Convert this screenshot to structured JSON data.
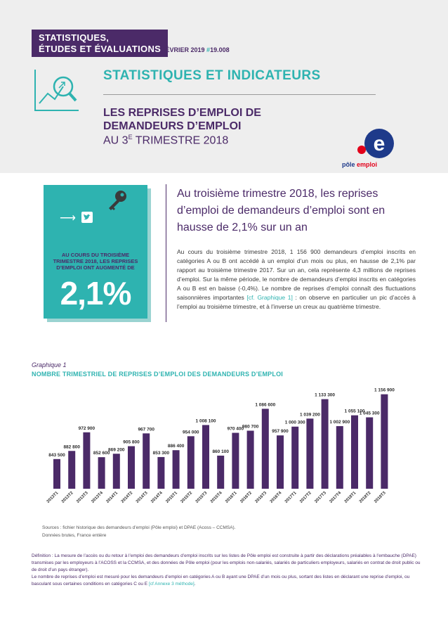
{
  "header": {
    "brand_line1": "STATISTIQUES,",
    "brand_line2": "ÉTUDES ET ÉVALUATIONS",
    "issue_date": "FÉVRIER 2019",
    "issue_hash": "#",
    "issue_number": "19.008",
    "main_title": "STATISTIQUES ET INDICATEURS",
    "sub_title_line1": "LES REPRISES D’EMPLOI DE",
    "sub_title_line2": "DEMANDEURS D’EMPLOI",
    "sub_title_line3_a": "AU 3",
    "sub_title_line3_sup": "E",
    "sub_title_line3_b": " TRIMESTRE 2018",
    "logo_text_a": "pôle ",
    "logo_text_b": "emploi",
    "logo_letter": "e",
    "colors": {
      "purple": "#4b2a68",
      "teal": "#2eb3b0",
      "red": "#e2001a",
      "navy": "#1e3a8a"
    }
  },
  "highlight": {
    "arrow": "⟶",
    "lead": "AU COURS DU TROISIÈME TRIMESTRE 2018, LES REPRISES D’EMPLOI ONT AUGMENTÉ DE",
    "value": "2,1%",
    "icons": [
      "key-icon",
      "twitter-icon",
      "arrow-right-icon"
    ]
  },
  "article": {
    "headline": "Au troisième trimestre 2018, les reprises d’emploi de demandeurs d’emploi sont en hausse de 2,1% sur un an",
    "body_a": "Au cours du troisième trimestre 2018, 1 156 900 demandeurs d’emploi inscrits en catégories A ou B ont accédé à un emploi d’un mois ou plus, en hausse de 2,1% par rapport au troisième trimestre 2017. Sur un an, cela représente 4,3 millions de reprises d’emploi. Sur la même période, le nombre de demandeurs d’emploi inscrits en catégories A ou B est en baisse (-0,4%). Le nombre de reprises d’emploi connaît des fluctuations saisonnières importantes ",
    "body_ref": "[cf. Graphique 1]",
    "body_b": " : on observe en particulier un pic d’accès à l’emploi au troisième trimestre, et à l’inverse un creux au quatrième trimestre."
  },
  "graph": {
    "label": "Graphique 1",
    "title": "NOMBRE TRIMESTRIEL DE REPRISES D’EMPLOI DES DEMANDEURS D’EMPLOI",
    "sources_line1": "Sources : fichier historique des demandeurs d’emploi (Pôle emploi) et DPAE (Acoss – CCMSA).",
    "sources_line2": "Données brutes, France entière"
  },
  "chart_data": {
    "type": "bar",
    "categories": [
      "2013T1",
      "2013T2",
      "2013T3",
      "2013T4",
      "2014T1",
      "2014T2",
      "2014T3",
      "2014T4",
      "2015T1",
      "2015T2",
      "2015T3",
      "2015T4",
      "2016T1",
      "2016T2",
      "2016T3",
      "2016T4",
      "2017T1",
      "2017T2",
      "2017T3",
      "2017T4",
      "2018T1",
      "2018T2",
      "2018T3"
    ],
    "values": [
      843500,
      882800,
      972900,
      852600,
      869200,
      905800,
      967700,
      853300,
      886400,
      954000,
      1008100,
      860100,
      970400,
      980700,
      1086600,
      957900,
      1000300,
      1039200,
      1133300,
      1002900,
      1055100,
      1045300,
      1156900
    ],
    "value_labels": [
      "843 500",
      "882 800",
      "972 900",
      "852 600",
      "869 200",
      "905 800",
      "967 700",
      "853 300",
      "886 400",
      "954 000",
      "1 008 100",
      "860 100",
      "970 400",
      "980 700",
      "1 086 600",
      "957 900",
      "1 000 300",
      "1 039 200",
      "1 133 300",
      "1 002 900",
      "1 055 100",
      "1 045 300",
      "1 156 900"
    ],
    "title": "NOMBRE TRIMESTRIEL DE REPRISES D’EMPLOI DES DEMANDEURS D’EMPLOI",
    "xlabel": "",
    "ylabel": "",
    "ylim": [
      700000,
      1200000
    ],
    "grid": false,
    "color": "#4b2a68"
  },
  "definition": {
    "text_a": "Définition : La mesure de l’accès ou du retour à l’emploi des demandeurs d’emploi inscrits sur les listes de Pôle emploi est construite à partir des déclarations préalables à l’embauche (DPAE) transmises par les employeurs à l’ACOSS et la CCMSA, et des données de Pôle emploi (pour les emplois non-salariés, salariés de particuliers employeurs, salariés en contrat de droit public ou de droit d’un pays étranger).",
    "text_b": "Le nombre de reprises d’emploi est mesuré pour les demandeurs d’emploi en catégories A ou B ayant une DPAE d’un mois ou plus, sortant des listes en déclarant une reprise d’emploi, ou basculant sous certaines conditions en catégories C ou E ",
    "text_ref": "[cf Annexe 3 méthode]",
    "text_end": "."
  }
}
